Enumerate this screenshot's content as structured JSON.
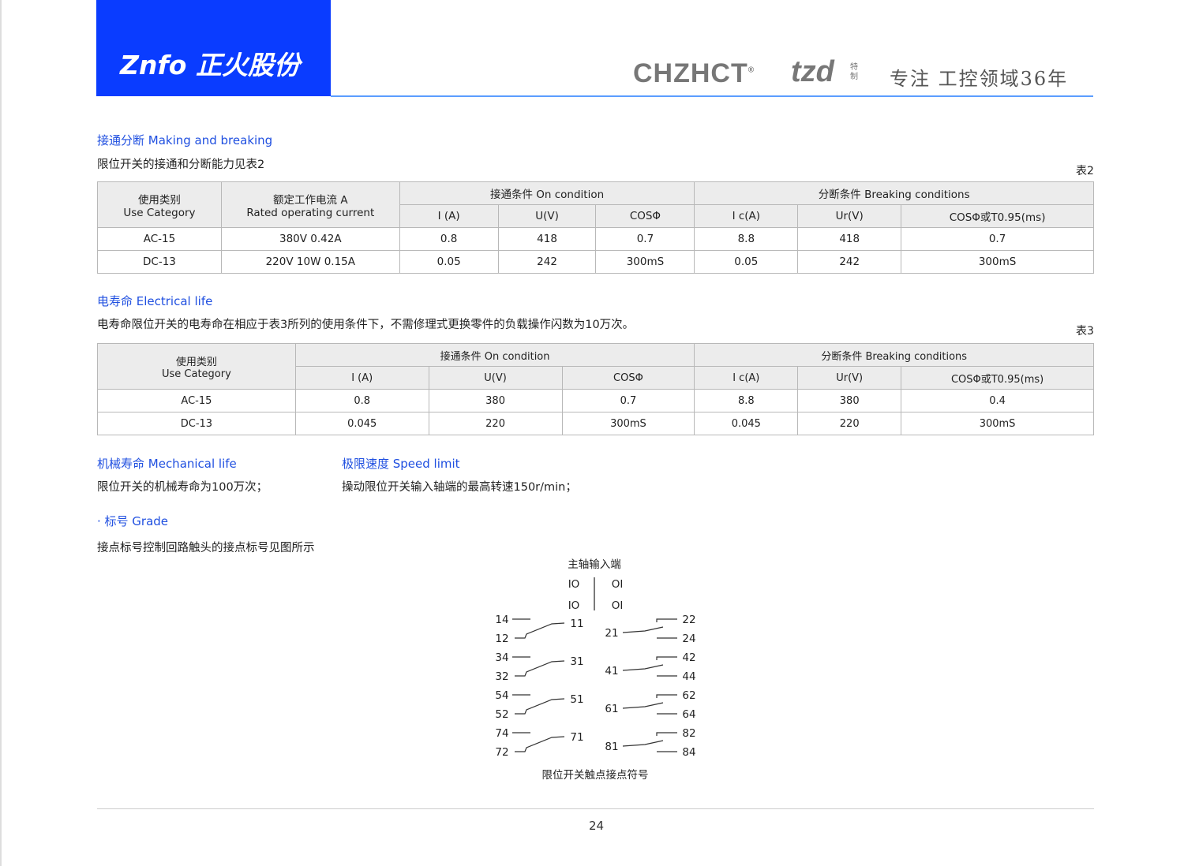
{
  "header": {
    "logo": "Znfo 正火股份",
    "brand1": "CHZHCT",
    "brand1_mark": "®",
    "brand2": "tzd",
    "brand2_sub": "特制",
    "slogan": "专注 工控领域36年",
    "colors": {
      "accent": "#0a3cff",
      "rule": "#5b9dff",
      "heading": "#1f4fe0"
    }
  },
  "s1": {
    "title": "接通分断 Making and breaking",
    "text": "限位开关的接通和分断能力见表2",
    "table_no": "表2",
    "h": {
      "cat1": "使用类别",
      "cat2": "Use Category",
      "cur1": "额定工作电流 A",
      "cur2": "Rated operating current",
      "on": "接通条件 On condition",
      "off": "分断条件 Breaking conditions",
      "sub": [
        "I (A)",
        "U(V)",
        "COSΦ",
        "I c(A)",
        "Ur(V)",
        "COSΦ或T0.95(ms)"
      ]
    },
    "rows": [
      [
        "AC-15",
        "380V 0.42A",
        "0.8",
        "418",
        "0.7",
        "8.8",
        "418",
        "0.7"
      ],
      [
        "DC-13",
        "220V 10W 0.15A",
        "0.05",
        "242",
        "300mS",
        "0.05",
        "242",
        "300mS"
      ]
    ]
  },
  "s2": {
    "title": "电寿命 Electrical life",
    "text": "电寿命限位开关的电寿命在相应于表3所列的使用条件下，不需修理式更换零件的负载操作闪数为10万次。",
    "table_no": "表3",
    "h": {
      "cat1": "使用类别",
      "cat2": "Use Category",
      "on": "接通条件 On condition",
      "off": "分断条件 Breaking conditions",
      "sub": [
        "I (A)",
        "U(V)",
        "COSΦ",
        "I c(A)",
        "Ur(V)",
        "COSΦ或T0.95(ms)"
      ]
    },
    "rows": [
      [
        "AC-15",
        "0.8",
        "380",
        "0.7",
        "8.8",
        "380",
        "0.4"
      ],
      [
        "DC-13",
        "0.045",
        "220",
        "300mS",
        "0.045",
        "220",
        "300mS"
      ]
    ]
  },
  "s3": {
    "title": "机械寿命 Mechanical life",
    "text": "限位开关的机械寿命为100万次；"
  },
  "s4": {
    "title": "极限速度 Speed limit",
    "text": "操动限位开关输入轴端的最高转速150r/min；"
  },
  "s5": {
    "title": "· 标号 Grade",
    "text": "接点标号控制回路触头的接点标号见图所示"
  },
  "diagram": {
    "title": "主轴输入端",
    "io": [
      "IO",
      "OI",
      "IO",
      "OI"
    ],
    "left": [
      [
        "14",
        "12",
        "11"
      ],
      [
        "34",
        "32",
        "31"
      ],
      [
        "54",
        "52",
        "51"
      ],
      [
        "74",
        "72",
        "71"
      ]
    ],
    "right": [
      [
        "22",
        "24",
        "21"
      ],
      [
        "42",
        "44",
        "41"
      ],
      [
        "62",
        "64",
        "61"
      ],
      [
        "82",
        "84",
        "81"
      ]
    ],
    "caption": "限位开关触点接点符号"
  },
  "footer": {
    "page": "24"
  }
}
